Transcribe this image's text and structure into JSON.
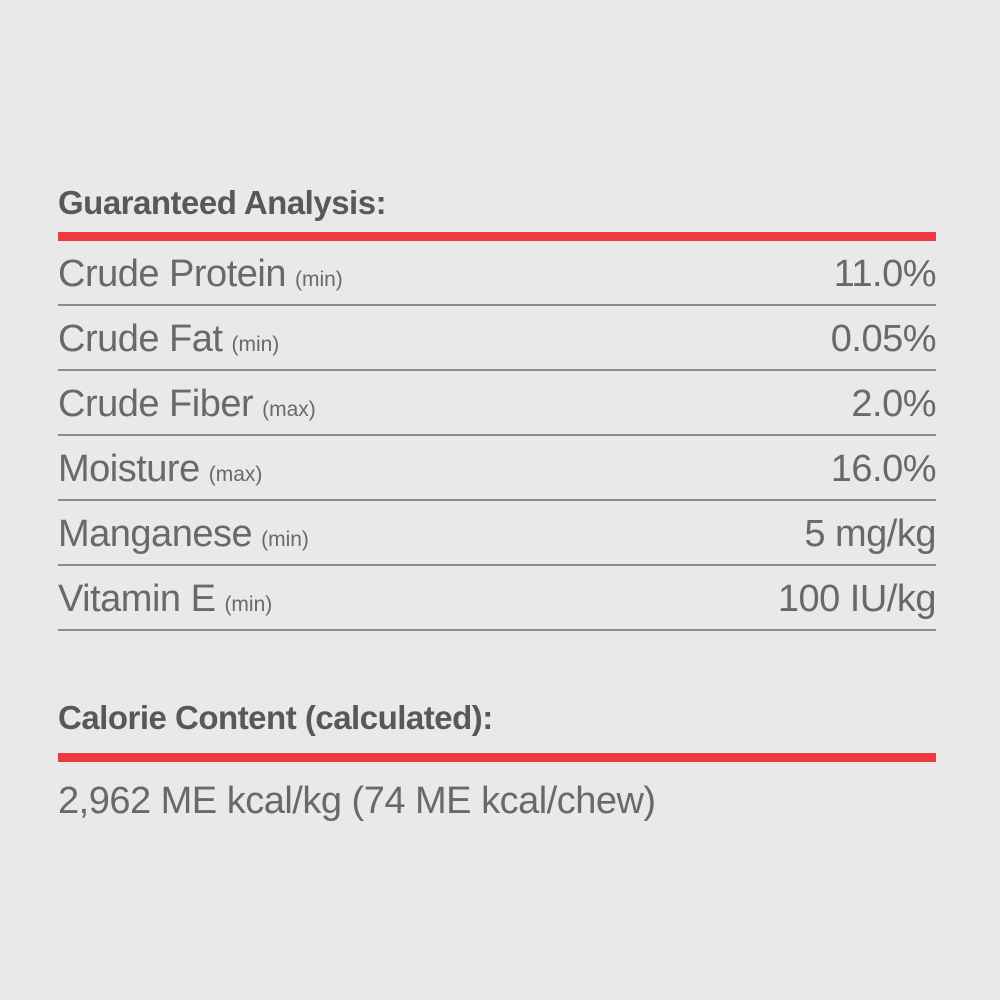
{
  "colors": {
    "background": "#e9e9e9",
    "accent_red": "#ee3842",
    "heading_gray": "#57585a",
    "body_gray": "#68696b",
    "divider_gray": "#8a8b8d"
  },
  "guaranteed_analysis": {
    "heading": "Guaranteed Analysis:",
    "rows": [
      {
        "name": "Crude Protein",
        "qualifier": "(min)",
        "value": "11.0%"
      },
      {
        "name": "Crude Fat",
        "qualifier": "(min)",
        "value": "0.05%"
      },
      {
        "name": "Crude Fiber",
        "qualifier": "(max)",
        "value": "2.0%"
      },
      {
        "name": "Moisture",
        "qualifier": "(max)",
        "value": "16.0%"
      },
      {
        "name": "Manganese",
        "qualifier": "(min)",
        "value": "5 mg/kg"
      },
      {
        "name": "Vitamin E",
        "qualifier": "(min)",
        "value": "100 IU/kg"
      }
    ]
  },
  "calorie_content": {
    "heading": "Calorie Content (calculated):",
    "value": "2,962 ME kcal/kg (74 ME kcal/chew)"
  }
}
